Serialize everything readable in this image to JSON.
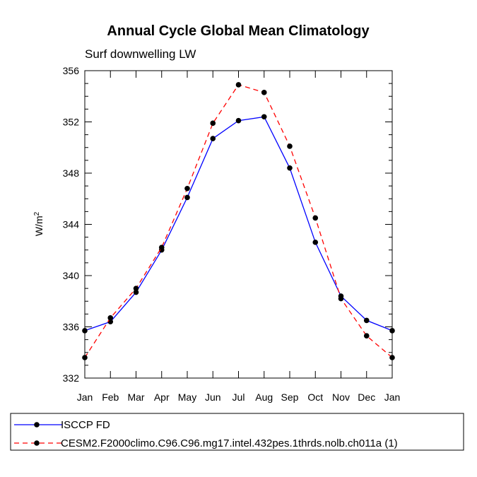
{
  "chart_data": {
    "type": "line",
    "title": "Annual Cycle Global Mean Climatology",
    "subtitle": "Surf downwelling LW",
    "ylabel": "W/m",
    "ylabel_sup": "2",
    "xlabel": "",
    "categories": [
      "Jan",
      "Feb",
      "Mar",
      "Apr",
      "May",
      "Jun",
      "Jul",
      "Aug",
      "Sep",
      "Oct",
      "Nov",
      "Dec",
      "Jan"
    ],
    "ylim": [
      332,
      356
    ],
    "yticks": [
      332,
      336,
      340,
      344,
      348,
      352,
      356
    ],
    "grid": false,
    "legend_position": "bottom-left",
    "series": [
      {
        "name": "ISCCP FD",
        "color": "#0000ff",
        "dash": "solid",
        "values": [
          335.7,
          336.4,
          338.7,
          342.0,
          346.1,
          350.7,
          352.1,
          352.4,
          348.4,
          342.6,
          338.4,
          336.5,
          335.7
        ]
      },
      {
        "name": "CESM2.F2000climo.C96.C96.mg17.intel.432pes.1thrds.nolb.ch011a (1)",
        "color": "#ff0000",
        "dash": "dashed",
        "values": [
          333.6,
          336.7,
          339.0,
          342.2,
          346.8,
          351.9,
          354.9,
          354.3,
          350.1,
          344.5,
          338.2,
          335.3,
          333.6
        ]
      }
    ]
  }
}
